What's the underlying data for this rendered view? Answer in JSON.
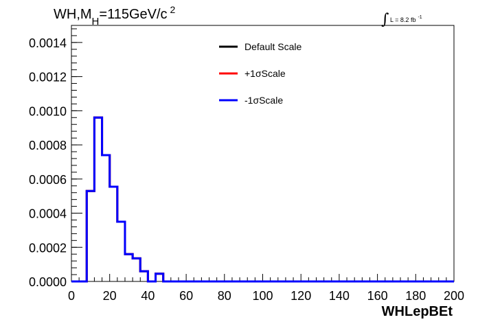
{
  "chart_data": {
    "type": "line",
    "title_main": "WH,M",
    "title_sub": "H",
    "title_rest": "=115GeV/c",
    "title_sup": "2",
    "lumi_label": "L = 8.2 fb",
    "lumi_sup": "-1",
    "xlabel": "WHLepBEt",
    "xlim": [
      0,
      200
    ],
    "ylim": [
      0,
      0.0015
    ],
    "x_ticks": [
      0,
      20,
      40,
      60,
      80,
      100,
      120,
      140,
      160,
      180,
      200
    ],
    "x_tick_labels": [
      "0",
      "20",
      "40",
      "60",
      "80",
      "100",
      "120",
      "140",
      "160",
      "180",
      "200"
    ],
    "y_ticks": [
      0,
      0.0002,
      0.0004,
      0.0006,
      0.0008,
      0.001,
      0.0012,
      0.0014
    ],
    "y_tick_labels": [
      "0.0000",
      "0.0002",
      "0.0004",
      "0.0006",
      "0.0008",
      "0.0010",
      "0.0012",
      "0.0014"
    ],
    "bin_edges": [
      0,
      4,
      8,
      12,
      16,
      20,
      24,
      28,
      32,
      36,
      40,
      44,
      48,
      52,
      56,
      60,
      64,
      68,
      72,
      76,
      80,
      84,
      88,
      92,
      96,
      100,
      104,
      108,
      112,
      116,
      120,
      124,
      128,
      132,
      136,
      140,
      144,
      148,
      152,
      156,
      160,
      164,
      168,
      172,
      176,
      180,
      184,
      188,
      192,
      196,
      200
    ],
    "series": [
      {
        "name": "Default Scale",
        "color": "#000000",
        "values": [
          0,
          0,
          0.00053,
          0.00096,
          0.00074,
          0.000555,
          0.00035,
          0.00016,
          0.000135,
          6e-05,
          0,
          4.5e-05,
          0,
          0,
          0,
          0,
          0,
          0,
          0,
          0,
          0,
          0,
          0,
          0,
          0,
          0,
          0,
          0,
          0,
          0,
          0,
          0,
          0,
          0,
          0,
          0,
          0,
          0,
          0,
          0,
          0,
          0,
          0,
          0,
          0,
          0,
          0,
          0,
          0,
          0
        ]
      },
      {
        "name": "+1σScale",
        "color": "#ff0000",
        "values": [
          0,
          0,
          0.00053,
          0.00096,
          0.00074,
          0.000555,
          0.00035,
          0.00016,
          0.000135,
          6e-05,
          0,
          4.5e-05,
          0,
          0,
          0,
          0,
          0,
          0,
          0,
          0,
          0,
          0,
          0,
          0,
          0,
          0,
          0,
          0,
          0,
          0,
          0,
          0,
          0,
          0,
          0,
          0,
          0,
          0,
          0,
          0,
          0,
          0,
          0,
          0,
          0,
          0,
          0,
          0,
          0,
          0
        ]
      },
      {
        "name": "-1σScale",
        "color": "#0000ff",
        "values": [
          0,
          0,
          0.00053,
          0.00096,
          0.00074,
          0.000555,
          0.00035,
          0.00016,
          0.000135,
          6e-05,
          0,
          4.5e-05,
          0,
          0,
          0,
          0,
          0,
          0,
          0,
          0,
          0,
          0,
          0,
          0,
          0,
          0,
          0,
          0,
          0,
          0,
          0,
          0,
          0,
          0,
          0,
          0,
          0,
          0,
          0,
          0,
          0,
          0,
          0,
          0,
          0,
          0,
          0,
          0,
          0,
          0
        ]
      }
    ],
    "legend_position": "top-center",
    "grid": false
  }
}
